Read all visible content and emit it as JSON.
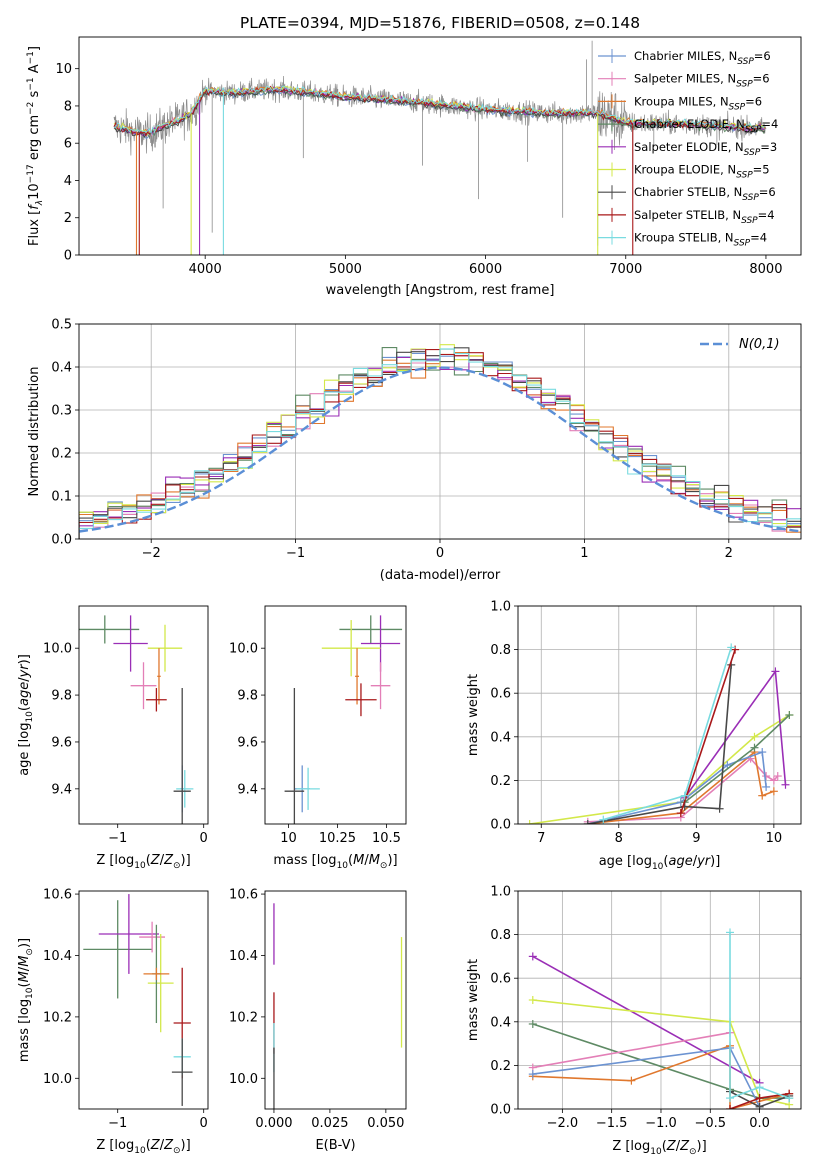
{
  "figure": {
    "title": "PLATE=0394, MJD=51876, FIBERID=0508, z=0.148"
  },
  "colors": {
    "chabrier_miles": "#6c93d1",
    "salpeter_miles": "#e37fb7",
    "kroupa_miles": "#e0782e",
    "chabrier_elodie": "#5e8a64",
    "salpeter_elodie": "#9a2eb6",
    "kroupa_elodie": "#d3e84a",
    "chabrier_stelib": "#484848",
    "salpeter_stelib": "#a8181a",
    "kroupa_stelib": "#79dbe0",
    "data": "#8c8c8c",
    "normal": "#5b8fd6",
    "grid": "#b0b0b0"
  },
  "chart_data": [
    {
      "id": "spectrum",
      "type": "line",
      "title": "PLATE=0394, MJD=51876, FIBERID=0508, z=0.148",
      "xlabel": "wavelength [Angstrom, rest frame]",
      "ylabel": "Flux [f_λ10^-17 erg cm^-2 s^-1 A^-1]",
      "xlim": [
        3100,
        8250
      ],
      "ylim": [
        0,
        11.7
      ],
      "xticks": [
        4000,
        5000,
        6000,
        7000,
        8000
      ],
      "yticks": [
        0,
        2,
        4,
        6,
        8,
        10
      ],
      "grid": false,
      "legend_position": "top-right",
      "legend": [
        {
          "label": "Chabrier MILES, N",
          "sub": "SSP",
          "suffix": "=6",
          "color": "#6c93d1"
        },
        {
          "label": "Salpeter MILES, N",
          "sub": "SSP",
          "suffix": "=6",
          "color": "#e37fb7"
        },
        {
          "label": "Kroupa MILES, N",
          "sub": "SSP",
          "suffix": "=6",
          "color": "#e0782e"
        },
        {
          "label": "Chabrier ELODIE, N",
          "sub": "SSP",
          "suffix": "=4",
          "color": "#5e8a64"
        },
        {
          "label": "Salpeter ELODIE, N",
          "sub": "SSP",
          "suffix": "=3",
          "color": "#9a2eb6"
        },
        {
          "label": "Kroupa ELODIE, N",
          "sub": "SSP",
          "suffix": "=5",
          "color": "#d3e84a"
        },
        {
          "label": "Chabrier STELIB, N",
          "sub": "SSP",
          "suffix": "=6",
          "color": "#484848"
        },
        {
          "label": "Salpeter STELIB, N",
          "sub": "SSP",
          "suffix": "=4",
          "color": "#a8181a"
        },
        {
          "label": "Kroupa STELIB, N",
          "sub": "SSP",
          "suffix": "=4",
          "color": "#79dbe0"
        }
      ],
      "continuum": {
        "x": [
          3350,
          3500,
          3600,
          3700,
          3800,
          3900,
          4000,
          4200,
          4500,
          5000,
          5500,
          6000,
          6500,
          6800,
          7000,
          7500,
          7900,
          8000
        ],
        "y": [
          6.9,
          6.6,
          6.5,
          6.9,
          7.2,
          7.6,
          8.8,
          8.7,
          8.9,
          8.5,
          8.2,
          7.8,
          7.6,
          7.6,
          7.1,
          7.0,
          6.8,
          6.8
        ]
      }
    },
    {
      "id": "residuals",
      "type": "histogram",
      "xlabel": "(data-model)/error",
      "ylabel": "Normed distribution",
      "xlim": [
        -2.5,
        2.5
      ],
      "ylim": [
        0,
        0.5
      ],
      "xticks": [
        -2,
        -1,
        0,
        1,
        2
      ],
      "yticks": [
        0.0,
        0.1,
        0.2,
        0.3,
        0.4,
        0.5
      ],
      "grid": true,
      "legend_position": "top-right",
      "normal_label": "N(0,1)",
      "bins": [
        -2.5,
        2.5,
        50
      ]
    },
    {
      "id": "z_vs_age",
      "type": "scatter",
      "xlabel": "Z [log10(Z/Z⊙)]",
      "ylabel": "age [log10(age/yr)]",
      "xlim": [
        -1.45,
        0.05
      ],
      "ylim": [
        9.25,
        10.18
      ],
      "xticks": [
        -1,
        0
      ],
      "yticks": [
        9.4,
        9.6,
        9.8,
        10.0
      ],
      "grid": false,
      "points": [
        {
          "x": -1.15,
          "y": 10.08,
          "xerr": 0.4,
          "yerr": 0.06,
          "color": "#5e8a64"
        },
        {
          "x": -0.85,
          "y": 10.02,
          "xerr": 0.2,
          "yerr": 0.12,
          "color": "#9a2eb6"
        },
        {
          "x": -0.7,
          "y": 9.84,
          "xerr": 0.15,
          "yerr": 0.1,
          "color": "#e37fb7"
        },
        {
          "x": -0.45,
          "y": 10.0,
          "xerr": 0.2,
          "yerr": 0.1,
          "color": "#d3e84a"
        },
        {
          "x": -0.52,
          "y": 9.88,
          "xerr": 0.02,
          "yerr": 0.12,
          "color": "#e0782e"
        },
        {
          "x": -0.55,
          "y": 9.78,
          "xerr": 0.12,
          "yerr": 0.05,
          "color": "#a8181a"
        },
        {
          "x": -0.25,
          "y": 9.4,
          "xerr": 0.02,
          "yerr": 0.1,
          "color": "#6c93d1"
        },
        {
          "x": -0.22,
          "y": 9.4,
          "xerr": 0.1,
          "yerr": 0.08,
          "color": "#79dbe0"
        },
        {
          "x": -0.25,
          "y": 9.39,
          "xerr": 0.1,
          "yerr": 0.44,
          "color": "#484848"
        }
      ]
    },
    {
      "id": "mass_vs_age",
      "type": "scatter",
      "xlabel": "mass [log10(M/M⊙)]",
      "ylabel": "",
      "xlim": [
        9.88,
        10.6
      ],
      "ylim": [
        9.25,
        10.18
      ],
      "xticks": [
        10.0,
        10.25,
        10.5
      ],
      "yticks": [
        9.4,
        9.6,
        9.8,
        10.0
      ],
      "grid": false,
      "points": [
        {
          "x": 10.42,
          "y": 10.08,
          "xerr": 0.16,
          "yerr": 0.06,
          "color": "#5e8a64"
        },
        {
          "x": 10.47,
          "y": 10.02,
          "xerr": 0.1,
          "yerr": 0.12,
          "color": "#9a2eb6"
        },
        {
          "x": 10.47,
          "y": 9.84,
          "xerr": 0.05,
          "yerr": 0.1,
          "color": "#e37fb7"
        },
        {
          "x": 10.32,
          "y": 10.0,
          "xerr": 0.15,
          "yerr": 0.12,
          "color": "#d3e84a"
        },
        {
          "x": 10.35,
          "y": 9.88,
          "xerr": 0.01,
          "yerr": 0.12,
          "color": "#e0782e"
        },
        {
          "x": 10.37,
          "y": 9.78,
          "xerr": 0.08,
          "yerr": 0.07,
          "color": "#a8181a"
        },
        {
          "x": 10.07,
          "y": 9.4,
          "xerr": 0.04,
          "yerr": 0.1,
          "color": "#6c93d1"
        },
        {
          "x": 10.1,
          "y": 9.4,
          "xerr": 0.06,
          "yerr": 0.09,
          "color": "#79dbe0"
        },
        {
          "x": 10.03,
          "y": 9.39,
          "xerr": 0.05,
          "yerr": 0.44,
          "color": "#484848"
        }
      ]
    },
    {
      "id": "age_weights",
      "type": "line",
      "xlabel": "age [log10(age/yr)]",
      "ylabel": "mass weight",
      "xlim": [
        6.7,
        10.35
      ],
      "ylim": [
        0,
        1.0
      ],
      "xticks": [
        7,
        8,
        9,
        10
      ],
      "yticks": [
        0.0,
        0.2,
        0.4,
        0.6,
        0.8,
        1.0
      ],
      "grid": true,
      "series": [
        {
          "color": "#d3e84a",
          "x": [
            6.85,
            8.8,
            9.75,
            10.2
          ],
          "y": [
            0.0,
            0.1,
            0.4,
            0.5
          ]
        },
        {
          "color": "#9a2eb6",
          "x": [
            8.85,
            10.02,
            10.15
          ],
          "y": [
            0.12,
            0.7,
            0.18
          ]
        },
        {
          "color": "#e37fb7",
          "x": [
            7.6,
            8.8,
            9.7,
            9.9,
            10.0,
            10.05
          ],
          "y": [
            0.01,
            0.03,
            0.3,
            0.22,
            0.2,
            0.22
          ]
        },
        {
          "color": "#e0782e",
          "x": [
            7.6,
            8.8,
            9.75,
            9.85,
            10.0
          ],
          "y": [
            0.0,
            0.05,
            0.33,
            0.13,
            0.15
          ]
        },
        {
          "color": "#6c93d1",
          "x": [
            7.6,
            8.8,
            9.4,
            9.85,
            9.9
          ],
          "y": [
            0.0,
            0.1,
            0.27,
            0.33,
            0.17
          ]
        },
        {
          "color": "#5e8a64",
          "x": [
            8.85,
            9.75,
            10.2
          ],
          "y": [
            0.1,
            0.35,
            0.5
          ]
        },
        {
          "color": "#484848",
          "x": [
            7.6,
            8.85,
            9.3,
            9.45
          ],
          "y": [
            0.0,
            0.08,
            0.07,
            0.73
          ]
        },
        {
          "color": "#a8181a",
          "x": [
            8.8,
            9.5
          ],
          "y": [
            0.05,
            0.8
          ]
        },
        {
          "color": "#79dbe0",
          "x": [
            7.8,
            8.85,
            9.45
          ],
          "y": [
            0.02,
            0.13,
            0.81
          ]
        }
      ]
    },
    {
      "id": "z_vs_mass",
      "type": "scatter",
      "xlabel": "Z [log10(Z/Z⊙)]",
      "ylabel": "mass [log10(M/M⊙)]",
      "xlim": [
        -1.45,
        0.05
      ],
      "ylim": [
        9.9,
        10.61
      ],
      "xticks": [
        -1,
        0
      ],
      "yticks": [
        10.0,
        10.2,
        10.4,
        10.6
      ],
      "grid": false,
      "points": [
        {
          "x": -1.0,
          "y": 10.42,
          "xerr": 0.4,
          "yerr": 0.16,
          "color": "#5e8a64"
        },
        {
          "x": -0.87,
          "y": 10.47,
          "xerr": 0.35,
          "yerr": 0.13,
          "color": "#9a2eb6"
        },
        {
          "x": -0.6,
          "y": 10.46,
          "xerr": 0.15,
          "yerr": 0.05,
          "color": "#e37fb7"
        },
        {
          "x": -0.5,
          "y": 10.31,
          "xerr": 0.15,
          "yerr": 0.16,
          "color": "#d3e84a"
        },
        {
          "x": -0.55,
          "y": 10.34,
          "xerr": 0.05,
          "yerr": 0.16,
          "color": "#5e8a64"
        },
        {
          "x": -0.55,
          "y": 10.34,
          "xerr": 0.15,
          "yerr": 0.02,
          "color": "#e0782e"
        },
        {
          "x": -0.25,
          "y": 10.18,
          "xerr": 0.1,
          "yerr": 0.18,
          "color": "#a8181a"
        },
        {
          "x": -0.25,
          "y": 10.07,
          "xerr": 0.1,
          "yerr": 0.06,
          "color": "#79dbe0"
        },
        {
          "x": -0.25,
          "y": 10.02,
          "xerr": 0.12,
          "yerr": 0.11,
          "color": "#484848"
        }
      ]
    },
    {
      "id": "ebv_vs_mass",
      "type": "scatter",
      "xlabel": "E(B-V)",
      "ylabel": "",
      "xlim": [
        -0.004,
        0.059
      ],
      "ylim": [
        9.9,
        10.61
      ],
      "xticks": [
        0.0,
        0.025,
        0.05
      ],
      "xticklabels": [
        "0.000",
        "0.025",
        "0.050"
      ],
      "yticks": [
        10.0,
        10.2,
        10.4,
        10.6
      ],
      "grid": false,
      "points": [
        {
          "x": 0.0,
          "y": 10.47,
          "xerr": 0,
          "yerr": 0.1,
          "color": "#9a2eb6"
        },
        {
          "x": 0.0,
          "y": 10.18,
          "xerr": 0,
          "yerr": 0.1,
          "color": "#a8181a"
        },
        {
          "x": 0.0,
          "y": 10.1,
          "xerr": 0,
          "yerr": 0.08,
          "color": "#79dbe0"
        },
        {
          "x": 0.0,
          "y": 10.0,
          "xerr": 0,
          "yerr": 0.1,
          "color": "#484848"
        },
        {
          "x": 0.057,
          "y": 10.28,
          "xerr": 0,
          "yerr": 0.18,
          "color": "#d3e84a"
        }
      ]
    },
    {
      "id": "z_weights",
      "type": "line",
      "xlabel": "Z [log10(Z/Z⊙)]",
      "ylabel": "mass weight",
      "xlim": [
        -2.45,
        0.42
      ],
      "ylim": [
        0,
        1.0
      ],
      "xticks": [
        -2.0,
        -1.5,
        -1.0,
        -0.5,
        0.0
      ],
      "xticklabels": [
        "−2.0",
        "−1.5",
        "−1.0",
        "−0.5",
        "0.0"
      ],
      "yticks": [
        0.0,
        0.2,
        0.4,
        0.6,
        0.8,
        1.0
      ],
      "grid": true,
      "series": [
        {
          "color": "#9a2eb6",
          "x": [
            -2.3,
            0.0
          ],
          "y": [
            0.7,
            0.12
          ]
        },
        {
          "color": "#d3e84a",
          "x": [
            -2.3,
            -0.3,
            0.0,
            0.3
          ],
          "y": [
            0.5,
            0.4,
            0.05,
            0.02
          ]
        },
        {
          "color": "#5e8a64",
          "x": [
            -2.3,
            -0.3,
            0.0,
            0.3
          ],
          "y": [
            0.39,
            0.09,
            0.05,
            0.05
          ]
        },
        {
          "color": "#e37fb7",
          "x": [
            -2.3,
            -0.3
          ],
          "y": [
            0.19,
            0.35
          ]
        },
        {
          "color": "#e0782e",
          "x": [
            -2.3,
            -1.3,
            -0.3,
            -0.3,
            0.3
          ],
          "y": [
            0.15,
            0.13,
            0.29,
            0.0,
            0.07
          ]
        },
        {
          "color": "#6c93d1",
          "x": [
            -2.3,
            -0.3,
            0.0
          ],
          "y": [
            0.16,
            0.28,
            0.01
          ]
        },
        {
          "color": "#484848",
          "x": [
            -0.3,
            0.0,
            0.3
          ],
          "y": [
            0.08,
            0.01,
            0.06
          ]
        },
        {
          "color": "#a8181a",
          "x": [
            -0.3,
            0.0,
            0.3
          ],
          "y": [
            0.0,
            0.05,
            0.07
          ]
        },
        {
          "color": "#79dbe0",
          "x": [
            -0.3,
            -0.3,
            0.0,
            0.3
          ],
          "y": [
            0.81,
            0.05,
            0.1,
            0.05
          ]
        }
      ]
    }
  ]
}
